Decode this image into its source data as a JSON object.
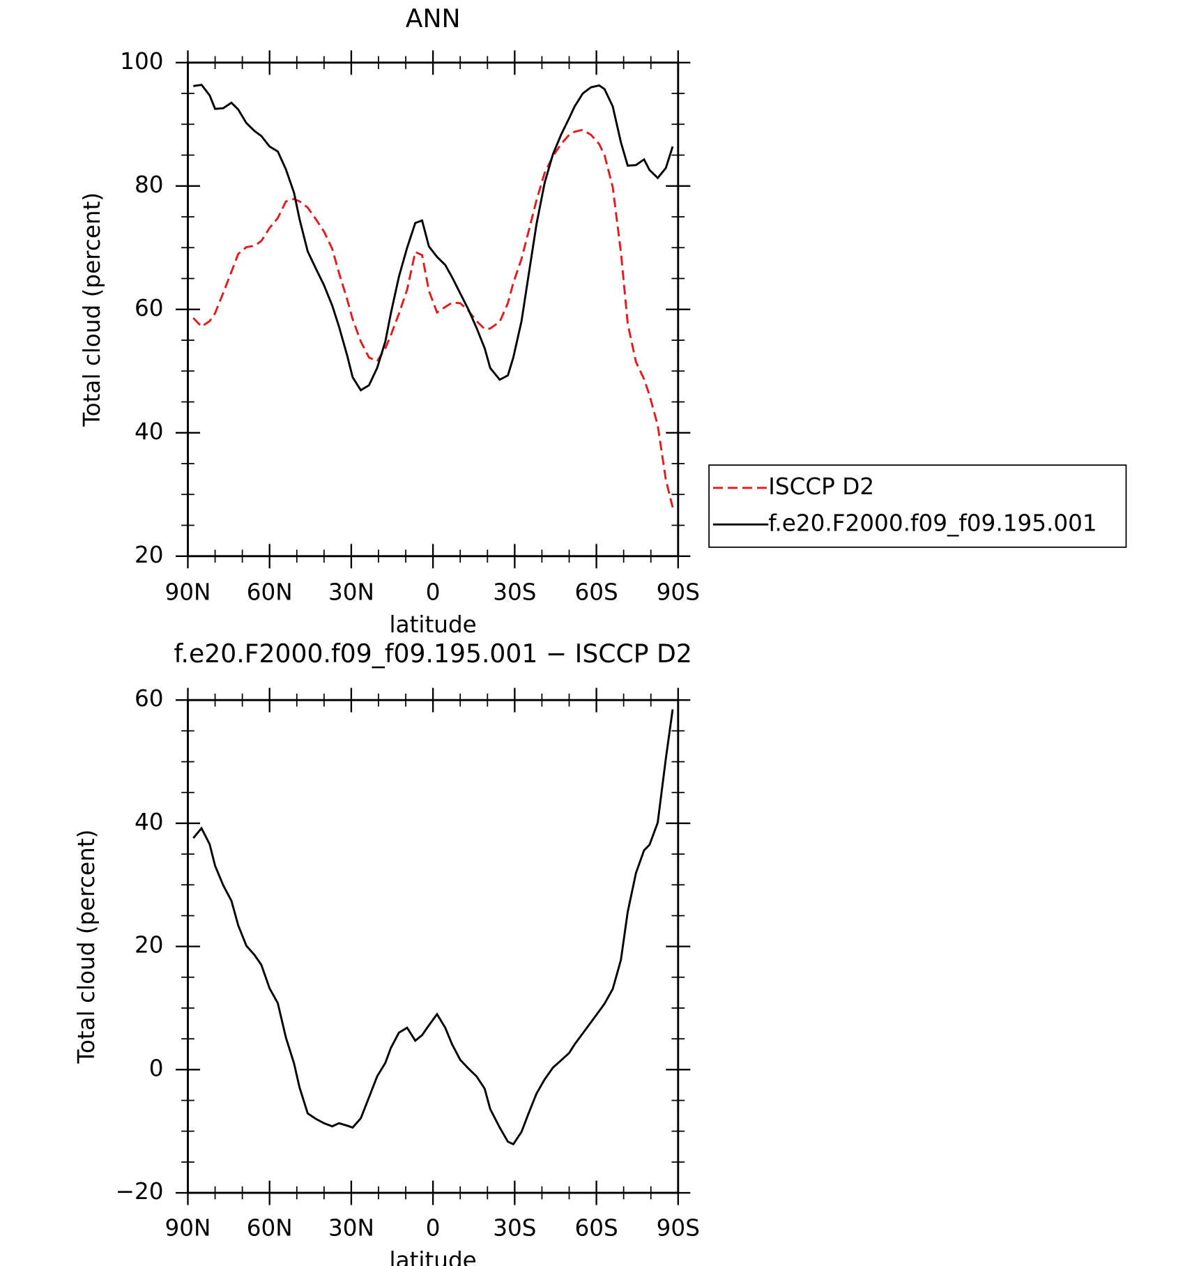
{
  "chart_data": [
    {
      "type": "line",
      "title": "ANN",
      "xlabel": "latitude",
      "ylabel": "Total cloud (percent)",
      "x": [
        88,
        85,
        82,
        80,
        77,
        74,
        71.5,
        68.5,
        65.5,
        63,
        60,
        57,
        54,
        51,
        49,
        46,
        43,
        40,
        37,
        34.5,
        31.5,
        29.5,
        26.5,
        23.5,
        20.5,
        17.5,
        15.5,
        12.5,
        9.5,
        6.5,
        4,
        1.5,
        -1.5,
        -4.5,
        -7,
        -10,
        -13,
        -16,
        -19,
        -21,
        -24.5,
        -27.5,
        -29.5,
        -32.5,
        -35,
        -38,
        -41,
        -44,
        -47,
        -50,
        -52,
        -55,
        -58,
        -61,
        -63,
        -66,
        -69,
        -71.5,
        -74.5,
        -77.5,
        -79.5,
        -82.5,
        -85.5,
        -88
      ],
      "series": [
        {
          "name": "ISCCP D2",
          "color": "#e41a1c",
          "dashed": true,
          "values": [
            58.6,
            57.2,
            58.1,
            59.4,
            62.7,
            66.1,
            69.0,
            70.1,
            70.3,
            71.1,
            73.2,
            74.8,
            77.5,
            77.9,
            77.5,
            76.5,
            74.6,
            72.6,
            69.8,
            65.9,
            61.6,
            58.4,
            54.8,
            52.2,
            51.6,
            53.7,
            55.8,
            59.3,
            63.2,
            69.3,
            68.8,
            63.0,
            59.5,
            60.4,
            61.1,
            61.0,
            59.8,
            58.1,
            56.8,
            56.9,
            58.0,
            61.0,
            64.3,
            68.2,
            72.5,
            77.7,
            82.1,
            84.8,
            86.8,
            88.3,
            88.8,
            89.1,
            88.3,
            86.8,
            85.0,
            79.8,
            69.3,
            57.7,
            51.5,
            48.7,
            46.1,
            41.2,
            32.4,
            27.9
          ]
        },
        {
          "name": "f.e20.F2000.f09_f09.195.001",
          "color": "#000000",
          "dashed": false,
          "values": [
            96.2,
            96.4,
            94.7,
            92.5,
            92.6,
            93.5,
            92.4,
            90.2,
            88.9,
            88.1,
            86.4,
            85.6,
            82.7,
            78.9,
            74.6,
            69.4,
            66.6,
            63.9,
            60.6,
            57.2,
            52.5,
            49.0,
            46.9,
            47.7,
            50.5,
            54.8,
            59.3,
            65.3,
            70.0,
            74.0,
            74.4,
            70.2,
            68.5,
            67.2,
            65.2,
            62.6,
            60.0,
            57.0,
            53.7,
            50.5,
            48.6,
            49.3,
            52.2,
            58.1,
            65.3,
            73.8,
            80.5,
            85.1,
            88.3,
            91.0,
            92.9,
            95.0,
            96.0,
            96.3,
            95.7,
            92.9,
            87.1,
            83.3,
            83.4,
            84.3,
            82.6,
            81.3,
            82.9,
            86.4
          ]
        }
      ],
      "xlim": [
        90,
        -90
      ],
      "xticks": [
        {
          "value": 90,
          "label": "90N"
        },
        {
          "value": 60,
          "label": "60N"
        },
        {
          "value": 30,
          "label": "30N"
        },
        0,
        {
          "value": -30,
          "label": "30S"
        },
        {
          "value": -60,
          "label": "60S"
        },
        {
          "value": -90,
          "label": "90S"
        }
      ],
      "xminorticks": [
        80,
        70,
        50,
        40,
        20,
        10,
        -10,
        -20,
        -40,
        -50,
        -70,
        -80
      ],
      "ylim": [
        20,
        100
      ],
      "yticks": [
        20,
        40,
        60,
        80,
        100
      ],
      "yminorticks": [
        25,
        30,
        35,
        45,
        50,
        55,
        65,
        70,
        75,
        85,
        90,
        95
      ],
      "legend": "right"
    },
    {
      "type": "line",
      "title": "f.e20.F2000.f09_f09.195.001 − ISCCP D2",
      "xlabel": "latitude",
      "ylabel": "Total cloud (percent)",
      "x": [
        88,
        85,
        82,
        80,
        77,
        74,
        71.5,
        68.5,
        65.5,
        63,
        60,
        57,
        54,
        51,
        49,
        46,
        43,
        40,
        37,
        34.5,
        31.5,
        29.5,
        26.5,
        23.5,
        20.5,
        17.5,
        15.5,
        12.5,
        9.5,
        6.5,
        4,
        1.5,
        -1.5,
        -4.5,
        -7,
        -10,
        -13,
        -16,
        -19,
        -21,
        -24.5,
        -27.5,
        -29.5,
        -32.5,
        -35,
        -38,
        -41,
        -44,
        -47,
        -50,
        -52,
        -55,
        -58,
        -61,
        -63,
        -66,
        -69,
        -71.5,
        -74.5,
        -77.5,
        -79.5,
        -82.5,
        -85.5,
        -88
      ],
      "color": "#000000",
      "values": [
        37.6,
        39.2,
        36.6,
        33.1,
        29.9,
        27.4,
        23.4,
        20.1,
        18.6,
        17.0,
        13.2,
        10.8,
        5.2,
        1.0,
        -2.9,
        -7.1,
        -8.0,
        -8.7,
        -9.2,
        -8.7,
        -9.1,
        -9.4,
        -7.9,
        -4.5,
        -1.1,
        1.1,
        3.5,
        6.0,
        6.8,
        4.7,
        5.6,
        7.2,
        9.0,
        6.8,
        4.1,
        1.6,
        0.2,
        -1.1,
        -3.1,
        -6.4,
        -9.4,
        -11.7,
        -12.1,
        -10.1,
        -7.2,
        -3.9,
        -1.6,
        0.3,
        1.5,
        2.7,
        4.1,
        5.9,
        7.7,
        9.5,
        10.7,
        13.1,
        17.8,
        25.6,
        31.9,
        35.6,
        36.5,
        40.1,
        50.5,
        58.5
      ],
      "xlim": [
        90,
        -90
      ],
      "xticks": [
        {
          "value": 90,
          "label": "90N"
        },
        {
          "value": 60,
          "label": "60N"
        },
        {
          "value": 30,
          "label": "30N"
        },
        0,
        {
          "value": -30,
          "label": "30S"
        },
        {
          "value": -60,
          "label": "60S"
        },
        {
          "value": -90,
          "label": "90S"
        }
      ],
      "xminorticks": [
        80,
        70,
        50,
        40,
        20,
        10,
        -10,
        -20,
        -40,
        -50,
        -70,
        -80
      ],
      "ylim": [
        -20,
        60
      ],
      "yticks": [
        {
          "value": -20,
          "label": "−20"
        },
        0,
        20,
        40,
        60
      ],
      "yminorticks": [
        -15,
        -10,
        -5,
        5,
        10,
        15,
        25,
        30,
        35,
        45,
        50,
        55
      ]
    }
  ]
}
